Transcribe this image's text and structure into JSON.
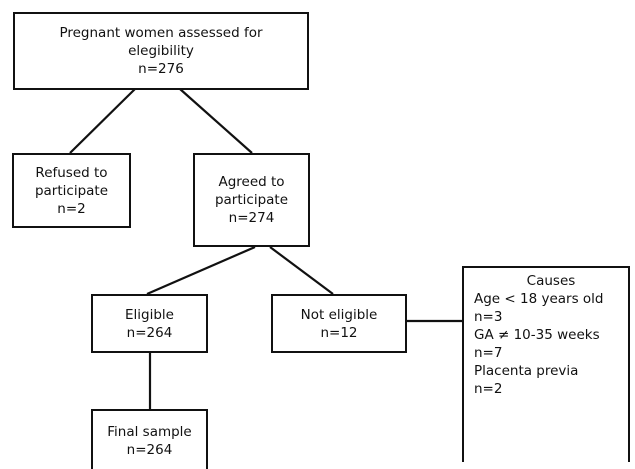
{
  "assessed": {
    "line1": "Pregnant women assessed for",
    "line2": "elegibility",
    "count": "n=276"
  },
  "refused": {
    "line1": "Refused to",
    "line2": "participate",
    "count": "n=2"
  },
  "agreed": {
    "line1": "Agreed to",
    "line2": "participate",
    "count": "n=274"
  },
  "eligible": {
    "label": "Eligible",
    "count": "n=264"
  },
  "not_eligible": {
    "label": "Not eligible",
    "count": "n=12"
  },
  "causes": {
    "title": "Causes",
    "items": [
      {
        "label": "Age < 18 years old",
        "count": "n=3"
      },
      {
        "label": "GA ≠ 10-35 weeks",
        "count": "n=7"
      },
      {
        "label": "Placenta previa",
        "count": "n=2"
      }
    ]
  },
  "final_sample": {
    "label": "Final sample",
    "count": "n=264"
  }
}
